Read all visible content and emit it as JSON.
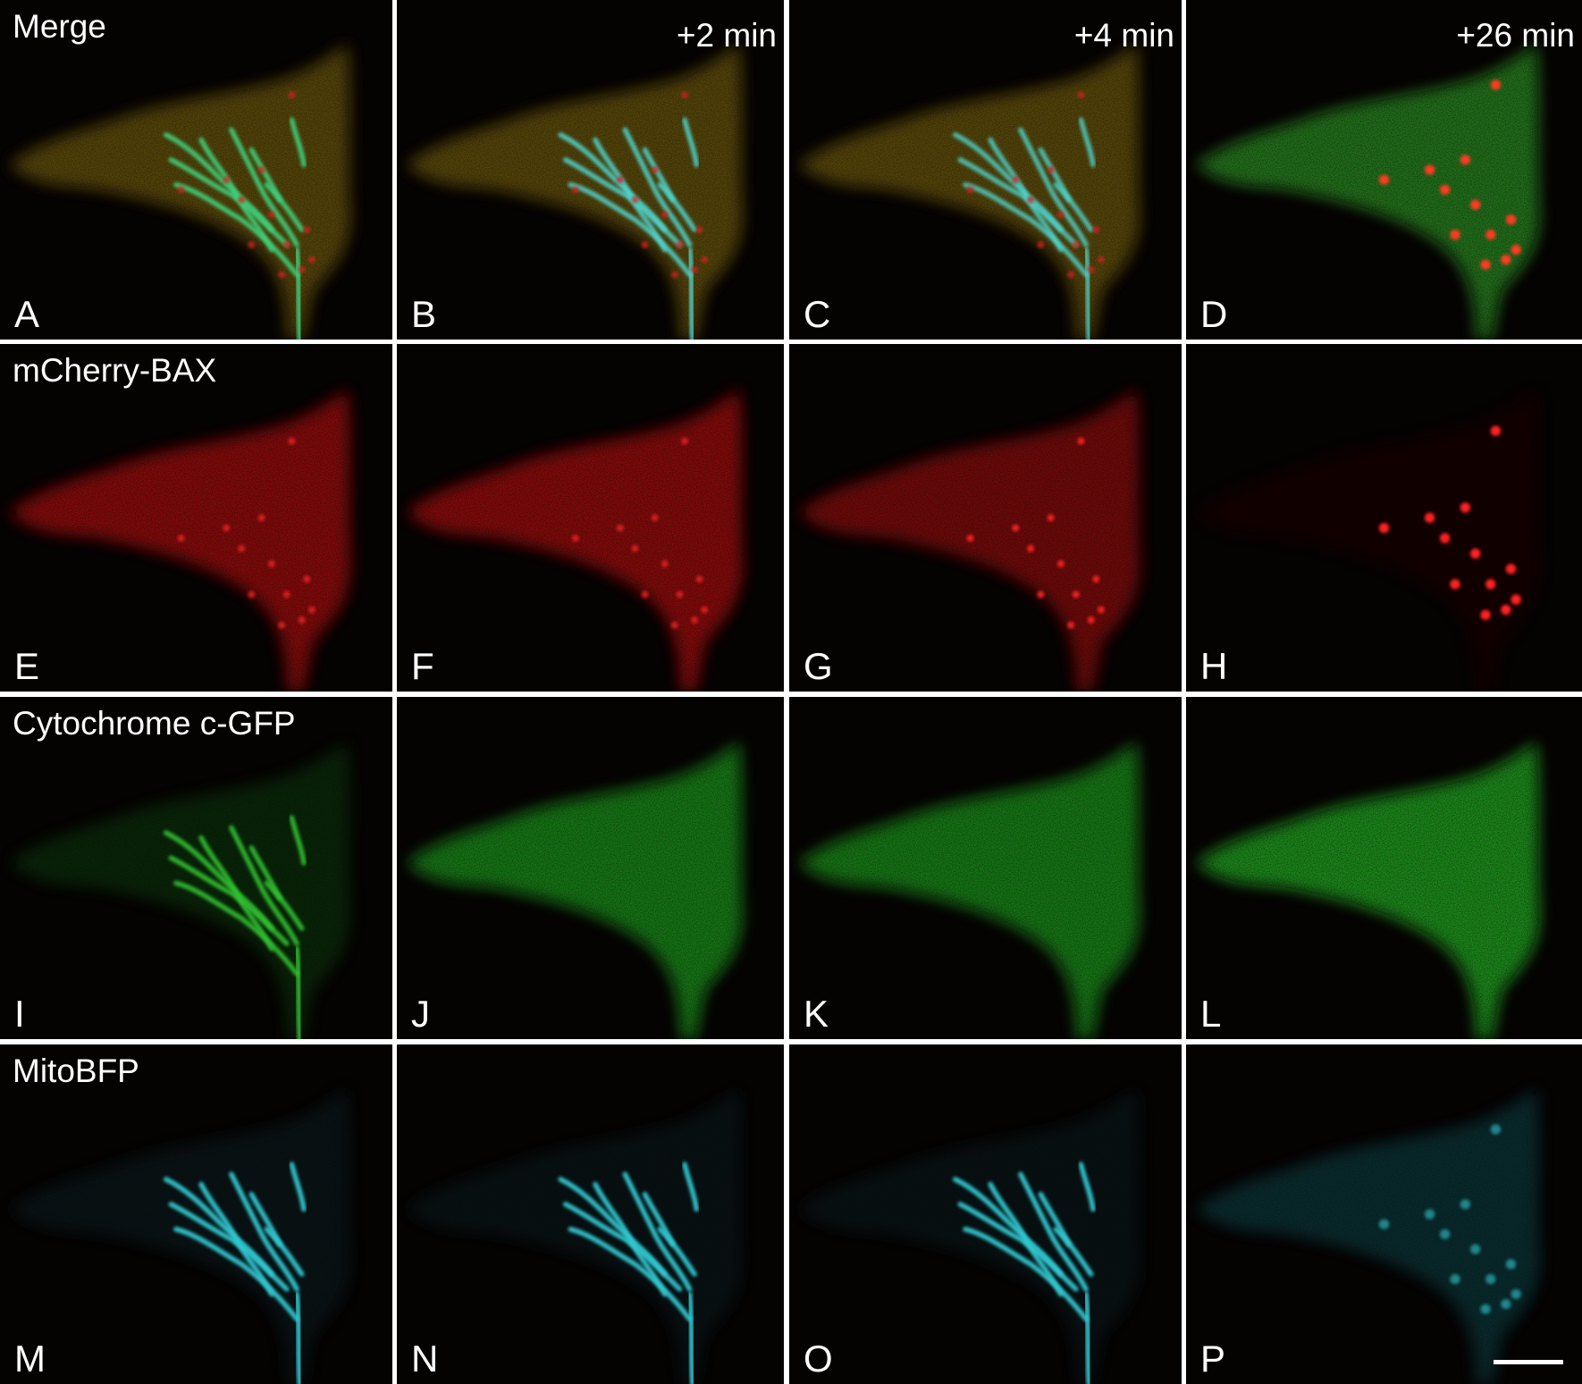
{
  "rows": [
    {
      "label": "Merge",
      "panels": [
        {
          "letter": "A"
        },
        {
          "letter": "B",
          "time": "+2 min"
        },
        {
          "letter": "C",
          "time": "+4 min"
        },
        {
          "letter": "D",
          "time": "+26 min"
        }
      ]
    },
    {
      "label": "mCherry-BAX",
      "panels": [
        {
          "letter": "E"
        },
        {
          "letter": "F"
        },
        {
          "letter": "G"
        },
        {
          "letter": "H"
        }
      ]
    },
    {
      "label": "Cytochrome c-GFP",
      "panels": [
        {
          "letter": "I"
        },
        {
          "letter": "J"
        },
        {
          "letter": "K"
        },
        {
          "letter": "L"
        }
      ]
    },
    {
      "label": "MitoBFP",
      "panels": [
        {
          "letter": "M"
        },
        {
          "letter": "N"
        },
        {
          "letter": "O"
        },
        {
          "letter": "P"
        }
      ]
    }
  ]
}
